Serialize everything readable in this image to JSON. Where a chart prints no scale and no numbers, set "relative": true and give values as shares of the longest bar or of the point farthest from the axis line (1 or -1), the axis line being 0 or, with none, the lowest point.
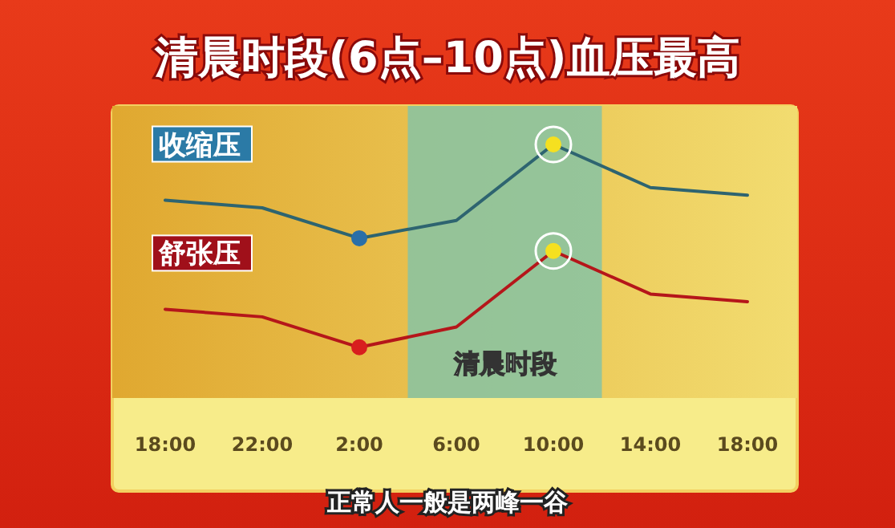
{
  "chart_data": {
    "type": "line",
    "title": "清晨时段(6点–10点)血压最高",
    "relative": true,
    "legend": false,
    "categories": [
      "18:00",
      "22:00",
      "2:00",
      "6:00",
      "10:00",
      "14:00",
      "18:00"
    ],
    "series": [
      {
        "name": "收缩压",
        "color": "#2e6470",
        "values": [
          0.78,
          0.75,
          0.63,
          0.7,
          1,
          0.83,
          0.8
        ]
      },
      {
        "name": "舒张压",
        "color": "#b5161a",
        "values": [
          0.35,
          0.32,
          0.2,
          0.28,
          0.58,
          0.41,
          0.38
        ]
      }
    ],
    "bands": [
      {
        "axis": "x",
        "from": "6:00",
        "to": "10:00",
        "label": "清晨时段",
        "color": "#86c3a4"
      }
    ],
    "annotations": [
      "正常人一般是两峰一谷"
    ]
  }
}
